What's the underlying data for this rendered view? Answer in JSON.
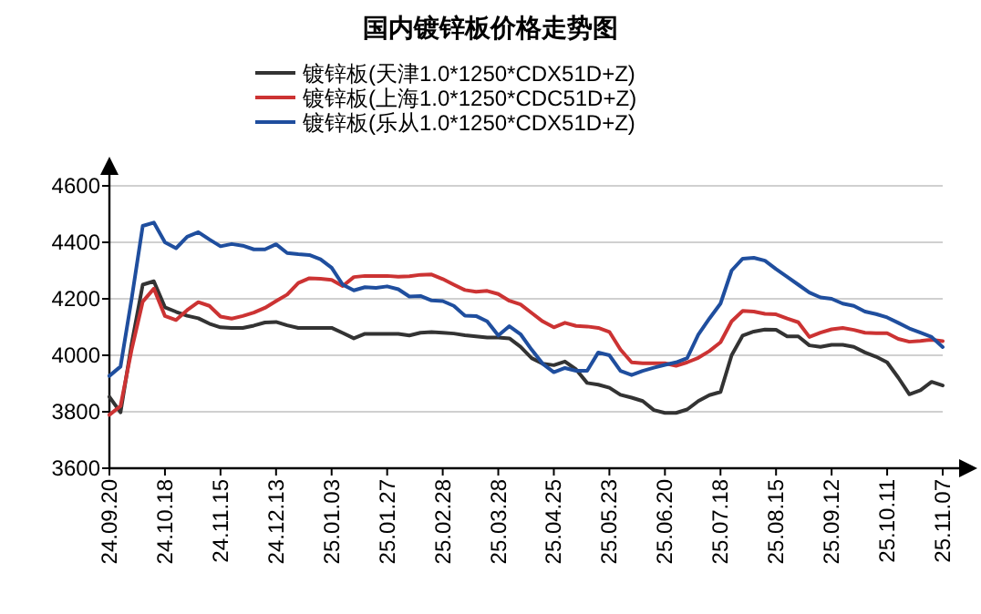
{
  "chart_data": {
    "type": "line",
    "title": "国内镀锌板价格走势图",
    "legend": "top",
    "grid": "y",
    "categories": [
      "24.09.20",
      null,
      null,
      null,
      null,
      "24.10.18",
      null,
      null,
      null,
      null,
      "24.11.15",
      null,
      null,
      null,
      null,
      "24.12.13",
      null,
      null,
      null,
      null,
      "25.01.03",
      null,
      null,
      null,
      null,
      "25.01.27",
      null,
      null,
      null,
      null,
      "25.02.28",
      null,
      null,
      null,
      null,
      "25.03.28",
      null,
      null,
      null,
      null,
      "25.04.25",
      null,
      null,
      null,
      null,
      "25.05.23",
      null,
      null,
      null,
      null,
      "25.06.20",
      null,
      null,
      null,
      null,
      "25.07.18",
      null,
      null,
      null,
      null,
      "25.08.15",
      null,
      null,
      null,
      null,
      "25.09.12",
      null,
      null,
      null,
      null,
      "25.10.11",
      null,
      null,
      null,
      null,
      "25.11.07"
    ],
    "ylim": [
      3600,
      4600
    ],
    "yticks": [
      3600,
      3800,
      4000,
      4200,
      4400,
      4600
    ],
    "series": [
      {
        "name": "镀锌板(天津1.0*1250*CDX51D+Z)",
        "color": "#333333",
        "values": [
          3853,
          3798,
          4040,
          4250,
          4262,
          4170,
          4154,
          4140,
          4131,
          4112,
          4099,
          4097,
          4097,
          4105,
          4116,
          4118,
          4106,
          4097,
          4097,
          4097,
          4097,
          4079,
          4060,
          4076,
          4076,
          4076,
          4076,
          4070,
          4080,
          4082,
          4080,
          4077,
          4071,
          4067,
          4063,
          4063,
          4060,
          4030,
          3990,
          3970,
          3965,
          3978,
          3950,
          3902,
          3896,
          3885,
          3860,
          3850,
          3838,
          3806,
          3796,
          3796,
          3808,
          3838,
          3859,
          3870,
          4000,
          4070,
          4084,
          4091,
          4090,
          4067,
          4067,
          4035,
          4030,
          4037,
          4037,
          4030,
          4010,
          3995,
          3975,
          3921,
          3862,
          3876,
          3906,
          3893
        ]
      },
      {
        "name": "镀锌板(上海1.0*1250*CDC51D+Z)",
        "color": "#cc3333",
        "values": [
          3789,
          3820,
          4020,
          4190,
          4236,
          4139,
          4125,
          4160,
          4188,
          4175,
          4137,
          4130,
          4139,
          4151,
          4168,
          4192,
          4215,
          4256,
          4273,
          4271,
          4267,
          4245,
          4277,
          4281,
          4281,
          4281,
          4278,
          4280,
          4285,
          4286,
          4270,
          4250,
          4231,
          4225,
          4228,
          4217,
          4193,
          4180,
          4150,
          4120,
          4099,
          4115,
          4104,
          4102,
          4097,
          4083,
          4020,
          3975,
          3972,
          3972,
          3972,
          3963,
          3975,
          3991,
          4015,
          4046,
          4120,
          4157,
          4155,
          4147,
          4145,
          4130,
          4117,
          4065,
          4080,
          4092,
          4097,
          4090,
          4080,
          4078,
          4078,
          4058,
          4048,
          4051,
          4055,
          4050
        ]
      },
      {
        "name": "镀锌板(乐从1.0*1250*CDX51D+Z)",
        "color": "#1f4e9e",
        "values": [
          3927,
          3960,
          4200,
          4458,
          4470,
          4400,
          4379,
          4420,
          4436,
          4410,
          4386,
          4394,
          4388,
          4375,
          4375,
          4393,
          4362,
          4358,
          4355,
          4340,
          4310,
          4250,
          4230,
          4241,
          4239,
          4244,
          4234,
          4208,
          4210,
          4194,
          4192,
          4175,
          4140,
          4139,
          4120,
          4070,
          4103,
          4075,
          4020,
          3970,
          3940,
          3955,
          3945,
          3945,
          4010,
          4000,
          3945,
          3930,
          3945,
          3956,
          3966,
          3975,
          3990,
          4073,
          4130,
          4183,
          4300,
          4342,
          4345,
          4335,
          4305,
          4278,
          4250,
          4222,
          4205,
          4200,
          4183,
          4175,
          4155,
          4146,
          4134,
          4115,
          4095,
          4080,
          4065,
          4029
        ]
      }
    ]
  }
}
